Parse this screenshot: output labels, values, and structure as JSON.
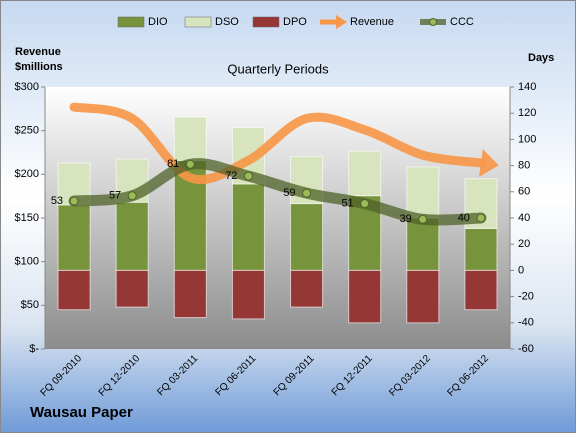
{
  "chart_data": {
    "type": "combo",
    "title": "Quarterly Periods",
    "company": "Wausau Paper",
    "y_label": "Revenue $millions",
    "y2_label": "Days",
    "categories": [
      "FQ 09-2010",
      "FQ 12-2010",
      "FQ 03-2011",
      "FQ 06-2011",
      "FQ 09-2011",
      "FQ 12-2011",
      "FQ 03-2012",
      "FQ 06-2012"
    ],
    "series": [
      {
        "name": "DIO",
        "type": "bar",
        "axis": "y2",
        "color": "#77933c",
        "values": [
          50,
          52,
          84,
          66,
          51,
          57,
          40,
          32
        ]
      },
      {
        "name": "DSO",
        "type": "bar",
        "axis": "y2",
        "color": "#d7e4bd",
        "values": [
          32,
          33,
          33,
          43,
          36,
          34,
          39,
          38
        ]
      },
      {
        "name": "DPO",
        "type": "bar",
        "axis": "y2",
        "color": "#953735",
        "values": [
          -30,
          -28,
          -36,
          -37,
          -28,
          -40,
          -40,
          -30
        ]
      },
      {
        "name": "Revenue",
        "type": "line",
        "axis": "y",
        "color": "#f79646",
        "values": [
          277,
          264,
          196,
          216,
          264,
          251,
          222,
          213
        ]
      },
      {
        "name": "CCC",
        "type": "line",
        "axis": "y2",
        "color": "#4f6228",
        "values": [
          53,
          57,
          81,
          72,
          59,
          51,
          39,
          40
        ]
      }
    ],
    "ylim": [
      0,
      300
    ],
    "yticks": [
      {
        "value": 0,
        "label": "$-"
      },
      {
        "value": 50,
        "label": "$50"
      },
      {
        "value": 100,
        "label": "$100"
      },
      {
        "value": 150,
        "label": "$150"
      },
      {
        "value": 200,
        "label": "$200"
      },
      {
        "value": 250,
        "label": "$250"
      },
      {
        "value": 300,
        "label": "$300"
      }
    ],
    "y2lim": [
      -60,
      140
    ],
    "y2ticks": [
      -60,
      -40,
      -20,
      0,
      20,
      40,
      60,
      80,
      100,
      120,
      140
    ]
  }
}
